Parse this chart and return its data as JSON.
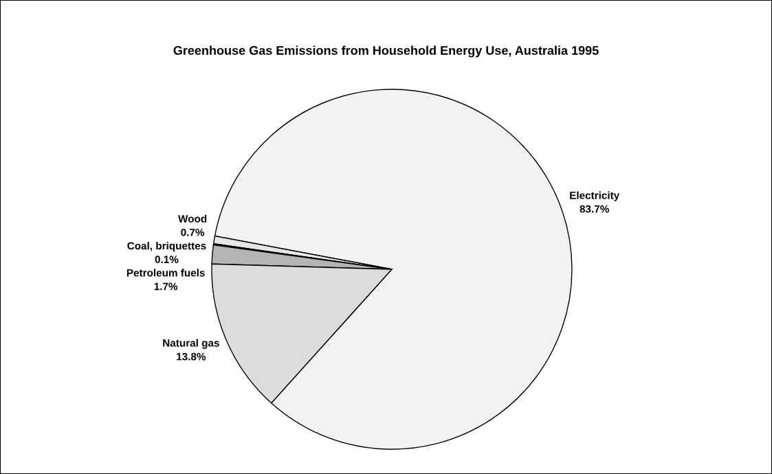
{
  "chart_data": {
    "type": "pie",
    "title": "Greenhouse Gas Emissions from Household Energy Use, Australia 1995",
    "categories": [
      "Electricity",
      "Wood",
      "Coal, briquettes",
      "Petroleum fuels",
      "Natural gas"
    ],
    "values": [
      83.7,
      0.7,
      0.1,
      1.7,
      13.8
    ],
    "value_labels": [
      "83.7%",
      "0.7%",
      "0.1%",
      "1.7%",
      "13.8%"
    ],
    "colors": [
      "#f2f2f2",
      "#e6e6e6",
      "#6e6e6e",
      "#b4b4b4",
      "#dcdcdc"
    ]
  }
}
